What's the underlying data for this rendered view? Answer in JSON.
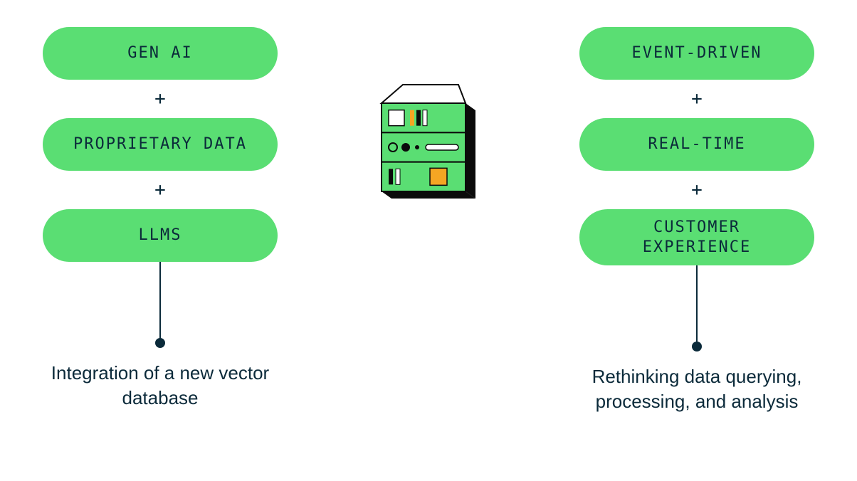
{
  "type": "infographic",
  "background_color": "#ffffff",
  "pill_color": "#5ade73",
  "pill_text_color": "#0b2a3a",
  "plus_text_color": "#0b2a3a",
  "connector_color": "#0b2a3a",
  "caption_text_color": "#0b2a3a",
  "pill_fontsize": 22,
  "plus_fontsize": 26,
  "caption_fontsize": 26,
  "connector_line_height": 108,
  "connector_dot_diameter": 14,
  "left": {
    "pills": [
      "GEN AI",
      "PROPRIETARY DATA",
      "LLMS"
    ],
    "plus": "+",
    "caption": "Integration of a new vector database"
  },
  "right": {
    "pills": [
      "EVENT-DRIVEN",
      "REAL-TIME",
      "CUSTOMER EXPERIENCE"
    ],
    "plus": "+",
    "caption": "Rethinking data querying, processing, and analysis"
  },
  "server_icon": {
    "panel_fill": "#5ade73",
    "frame_stroke": "#0b0b0b",
    "black_fill": "#0b0b0b",
    "white_fill": "#ffffff",
    "orange_fill": "#f5a623"
  }
}
